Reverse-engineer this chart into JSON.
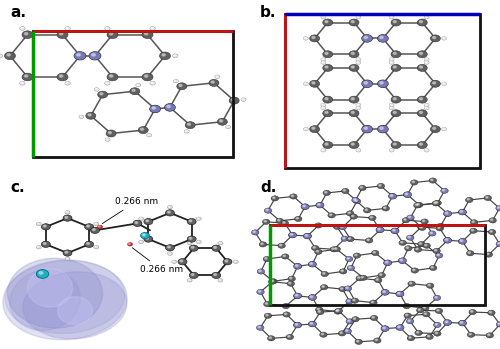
{
  "figsize": [
    5.0,
    3.49
  ],
  "dpi": 100,
  "background_color": "#ffffff",
  "panels": [
    "a.",
    "b.",
    "c.",
    "d."
  ],
  "panel_label_fontsize": 11,
  "panel_label_weight": "bold",
  "annotation_fontsize": 6.5,
  "mol_gray": "#606060",
  "mol_light": "#b0b0b0",
  "mol_blue": "#7878b8",
  "mol_cyan": "#20b0c0",
  "mol_white": "#e8e8e8",
  "surface_blue": "#8888cc",
  "line_colors": {
    "black": "#111111",
    "red": "#cc1111",
    "green": "#009900",
    "blue": "#0000bb"
  },
  "annotation1": "0.266 nm",
  "annotation2": "0.266 nm"
}
